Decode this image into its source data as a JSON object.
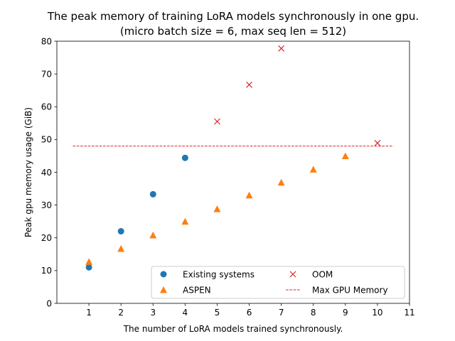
{
  "chart_data": {
    "type": "scatter",
    "title": "The peak memory of training LoRA models synchronously in one gpu.",
    "subtitle": "(micro batch size = 6, max seq len = 512)",
    "xlabel": "The number of LoRA models trained synchronously.",
    "ylabel": "Peak gpu memory usage (GiB)",
    "xlim": [
      0,
      11
    ],
    "ylim": [
      0,
      80
    ],
    "xticks": [
      1,
      2,
      3,
      4,
      5,
      6,
      7,
      8,
      9,
      10,
      11
    ],
    "yticks": [
      0,
      10,
      20,
      30,
      40,
      50,
      60,
      70,
      80
    ],
    "grid": false,
    "legend_position": "lower-right",
    "legend_columns": 2,
    "series": [
      {
        "name": "Existing systems",
        "marker": "circle",
        "color": "#1f77b4",
        "points": [
          [
            1,
            11.0
          ],
          [
            2,
            22.0
          ],
          [
            3,
            33.3
          ],
          [
            4,
            44.4
          ]
        ]
      },
      {
        "name": "ASPEN",
        "marker": "triangle",
        "color": "#ff7f0e",
        "points": [
          [
            1,
            12.7
          ],
          [
            2,
            16.7
          ],
          [
            3,
            20.8
          ],
          [
            4,
            25.0
          ],
          [
            5,
            28.8
          ],
          [
            6,
            33.0
          ],
          [
            7,
            36.9
          ],
          [
            8,
            40.9
          ],
          [
            9,
            45.0
          ]
        ]
      },
      {
        "name": "OOM",
        "marker": "x",
        "color": "#d62728",
        "points": [
          [
            5,
            55.5
          ],
          [
            6,
            66.7
          ],
          [
            7,
            77.8
          ],
          [
            10,
            48.9
          ]
        ]
      }
    ],
    "reference_lines": [
      {
        "name": "Max GPU Memory",
        "style": "dashed",
        "color": "#d62728",
        "y": 48,
        "x_range": [
          0.5,
          10.5
        ]
      }
    ]
  }
}
